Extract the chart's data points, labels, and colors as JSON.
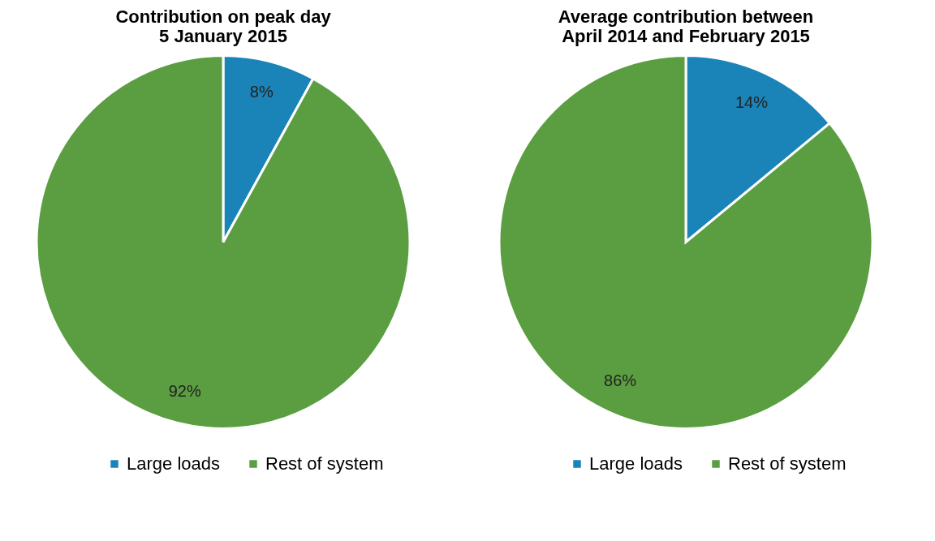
{
  "chart_data": [
    {
      "type": "pie",
      "title": "Contribution on peak day\n5 January 2015",
      "categories": [
        "Large loads",
        "Rest of system"
      ],
      "values": [
        8,
        92
      ],
      "colors": [
        "#1a84b8",
        "#5b9e41"
      ],
      "value_labels": [
        "8%",
        "92%"
      ],
      "legend": "bottom"
    },
    {
      "type": "pie",
      "title": "Average contribution between\nApril 2014 and February 2015",
      "categories": [
        "Large loads",
        "Rest of system"
      ],
      "values": [
        14,
        86
      ],
      "colors": [
        "#1a84b8",
        "#5b9e41"
      ],
      "value_labels": [
        "14%",
        "86%"
      ],
      "legend": "bottom"
    }
  ]
}
